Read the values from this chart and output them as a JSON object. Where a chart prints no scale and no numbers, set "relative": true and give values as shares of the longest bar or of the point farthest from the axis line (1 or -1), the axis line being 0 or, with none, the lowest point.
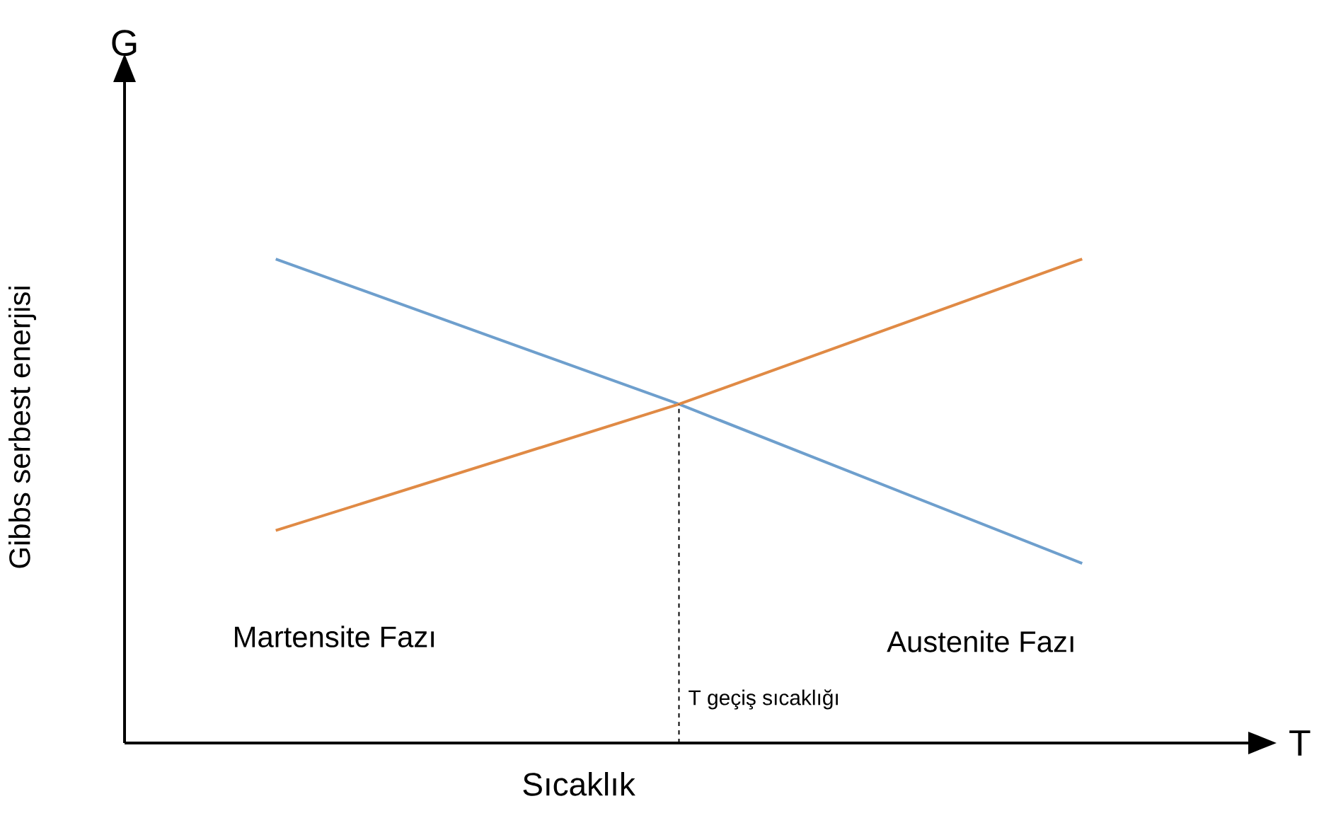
{
  "chart_data": {
    "type": "line",
    "relative": true,
    "xlabel": "Sıcaklık",
    "ylabel": "Gibbs serbest enerjisi",
    "categories": [
      null,
      null,
      null
    ],
    "series": [
      {
        "color": "#6e9fcd",
        "values": [
          1,
          0.7,
          0.371
        ]
      },
      {
        "color": "#e08a45",
        "values": [
          0.439,
          0.7,
          1
        ]
      }
    ],
    "annotations": [
      "G",
      "T",
      "Martensite Fazı",
      "Austenite Fazı",
      "T geçiş sıcaklığı"
    ],
    "marker": "none",
    "line_style": "solid"
  }
}
